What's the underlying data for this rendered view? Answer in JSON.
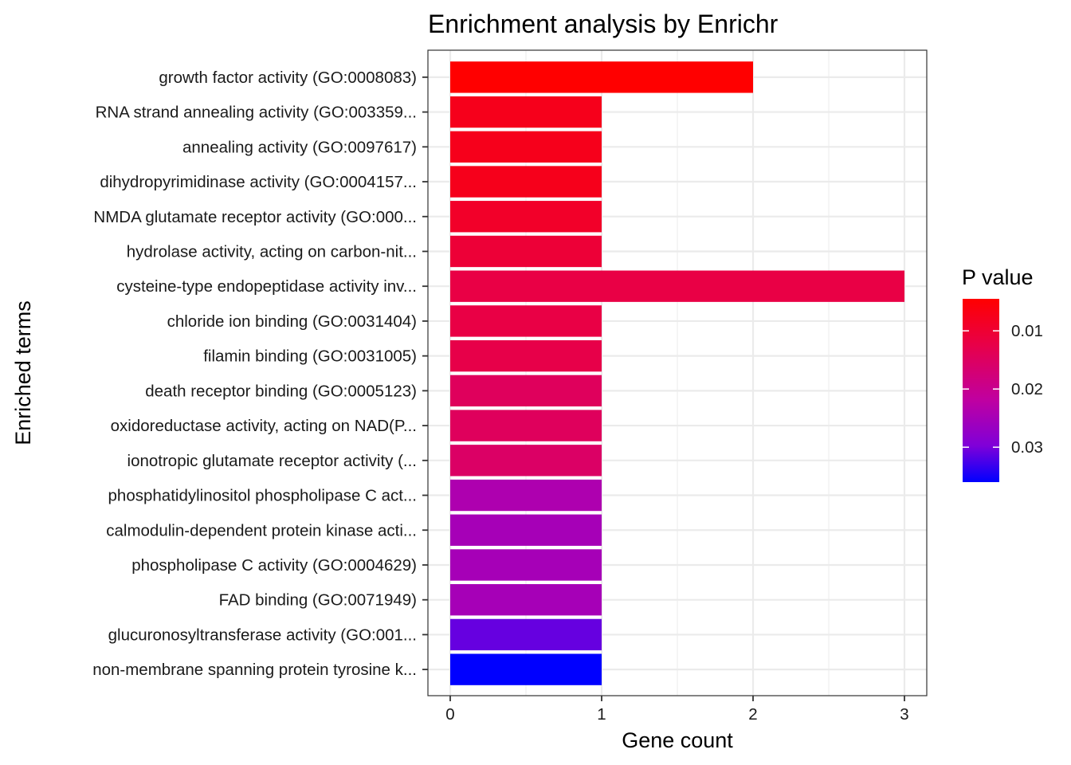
{
  "chart_data": {
    "type": "bar",
    "orientation": "horizontal",
    "title": "Enrichment analysis by Enrichr",
    "xlabel": "Gene count",
    "ylabel": "Enriched terms",
    "xlim": [
      0,
      3
    ],
    "xticks": [
      0,
      1,
      2,
      3
    ],
    "grid": true,
    "categories": [
      "growth factor activity (GO:0008083)",
      "RNA strand annealing activity (GO:003359...",
      "annealing activity (GO:0097617)",
      "dihydropyrimidinase activity (GO:0004157...",
      "NMDA glutamate receptor activity (GO:000...",
      "hydrolase activity, acting on carbon-nit...",
      "cysteine-type endopeptidase activity inv...",
      "chloride ion binding (GO:0031404)",
      "filamin binding (GO:0031005)",
      "death receptor binding (GO:0005123)",
      "oxidoreductase activity, acting on NAD(P...",
      "ionotropic glutamate receptor activity (...",
      "phosphatidylinositol phospholipase C act...",
      "calmodulin-dependent protein kinase acti...",
      "phospholipase C activity (GO:0004629)",
      "FAD binding (GO:0071949)",
      "glucuronosyltransferase activity (GO:001...",
      "non-membrane spanning protein tyrosine k..."
    ],
    "values": [
      2,
      1,
      1,
      1,
      1,
      1,
      3,
      1,
      1,
      1,
      1,
      1,
      1,
      1,
      1,
      1,
      1,
      1
    ],
    "p_values": [
      0.0045,
      0.0075,
      0.0075,
      0.0075,
      0.009,
      0.0105,
      0.012,
      0.012,
      0.0125,
      0.0145,
      0.0145,
      0.0155,
      0.024,
      0.025,
      0.025,
      0.025,
      0.031,
      0.036
    ],
    "legend": {
      "title": "P value",
      "position": "right",
      "range": [
        0.0045,
        0.036
      ],
      "ticks": [
        0.01,
        0.02,
        0.03
      ],
      "tick_labels": [
        "0.01",
        "0.02",
        "0.03"
      ],
      "color_low": "#ff0000",
      "color_high": "#0000ff"
    }
  }
}
